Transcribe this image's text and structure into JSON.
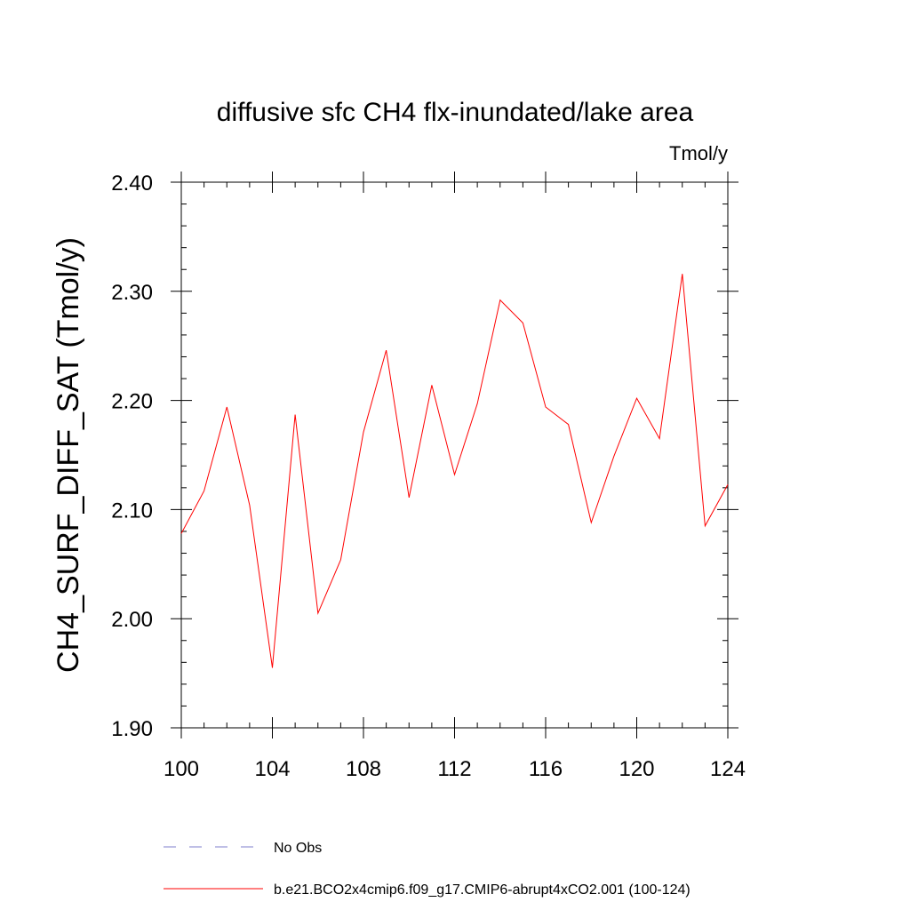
{
  "chart_data": {
    "type": "line",
    "title": "diffusive sfc CH4 flx-inundated/lake area",
    "units": "Tmol/y",
    "ylabel": "CH4_SURF_DIFF_SAT  (Tmol/y)",
    "xlabel": "",
    "xlim": [
      100,
      124
    ],
    "ylim": [
      1.9,
      2.4
    ],
    "x_ticks": [
      100,
      104,
      108,
      112,
      116,
      120,
      124
    ],
    "x_tick_labels": [
      "100",
      "104",
      "108",
      "112",
      "116",
      "120",
      "124"
    ],
    "y_ticks": [
      1.9,
      2.0,
      2.1,
      2.2,
      2.3,
      2.4
    ],
    "y_tick_labels": [
      "1.90",
      "2.00",
      "2.10",
      "2.20",
      "2.30",
      "2.40"
    ],
    "grid": false,
    "legend_position": "bottom",
    "series": [
      {
        "name": "b.e21.BCO2x4cmip6.f09_g17.CMIP6-abrupt4xCO2.001 (100-124)",
        "color": "#ff0000",
        "style": "solid",
        "x": [
          100,
          101,
          102,
          103,
          104,
          105,
          106,
          107,
          108,
          109,
          110,
          111,
          112,
          113,
          114,
          115,
          116,
          117,
          118,
          119,
          120,
          121,
          122,
          123,
          124
        ],
        "values": [
          2.078,
          2.117,
          2.194,
          2.104,
          1.955,
          2.187,
          2.005,
          2.054,
          2.171,
          2.246,
          2.111,
          2.214,
          2.132,
          2.197,
          2.292,
          2.271,
          2.194,
          2.178,
          2.088,
          2.149,
          2.202,
          2.165,
          2.316,
          2.085,
          2.123
        ]
      }
    ],
    "legend": [
      {
        "label": "No Obs",
        "color": "#7f7fcc",
        "style": "dashed"
      },
      {
        "label": "b.e21.BCO2x4cmip6.f09_g17.CMIP6-abrupt4xCO2.001 (100-124)",
        "color": "#ff0000",
        "style": "solid"
      }
    ]
  }
}
